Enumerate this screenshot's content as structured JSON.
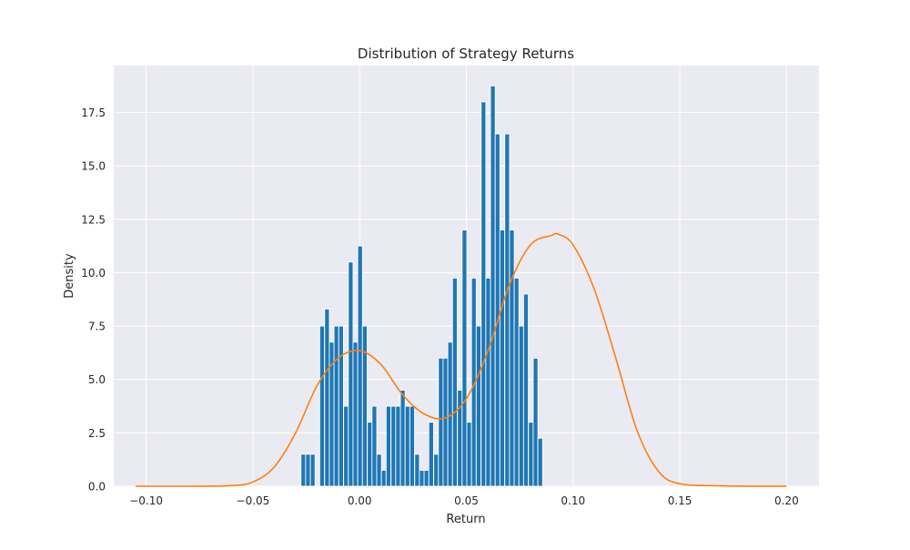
{
  "chart_data": {
    "type": "bar",
    "title": "Distribution of Strategy Returns",
    "xlabel": "Return",
    "ylabel": "Density",
    "xlim": [
      -0.1152,
      0.2152
    ],
    "ylim": [
      0,
      19.7
    ],
    "xticks": [
      -0.1,
      -0.05,
      0.0,
      0.05,
      0.1,
      0.15,
      0.2
    ],
    "xtick_labels": [
      "−0.10",
      "−0.05",
      "0.00",
      "0.05",
      "0.10",
      "0.15",
      "0.20"
    ],
    "yticks": [
      0,
      2.5,
      5,
      7.5,
      10,
      12.5,
      15,
      17.5
    ],
    "ytick_labels": [
      "0.0",
      "2.5",
      "5.0",
      "7.5",
      "10.0",
      "12.5",
      "15.0",
      "17.5"
    ],
    "grid": true,
    "background": "#eaeaf2",
    "histogram": {
      "color": "#1f77b4",
      "bin_width": 0.00222,
      "bins": [
        {
          "x0": -0.0275,
          "density": 1.5
        },
        {
          "x0": -0.0253,
          "density": 1.5
        },
        {
          "x0": -0.0231,
          "density": 1.5
        },
        {
          "x0": -0.0187,
          "density": 7.5
        },
        {
          "x0": -0.0164,
          "density": 8.3
        },
        {
          "x0": -0.0142,
          "density": 6.75
        },
        {
          "x0": -0.012,
          "density": 7.5
        },
        {
          "x0": -0.0098,
          "density": 7.5
        },
        {
          "x0": -0.0075,
          "density": 3.75
        },
        {
          "x0": -0.0053,
          "density": 10.5
        },
        {
          "x0": -0.0031,
          "density": 6.75
        },
        {
          "x0": -0.0009,
          "density": 11.25
        },
        {
          "x0": 0.0013,
          "density": 7.5
        },
        {
          "x0": 0.0036,
          "density": 3.0
        },
        {
          "x0": 0.0058,
          "density": 3.75
        },
        {
          "x0": 0.008,
          "density": 1.5
        },
        {
          "x0": 0.0102,
          "density": 0.75
        },
        {
          "x0": 0.0124,
          "density": 3.75
        },
        {
          "x0": 0.0147,
          "density": 3.75
        },
        {
          "x0": 0.0169,
          "density": 3.75
        },
        {
          "x0": 0.0191,
          "density": 4.5
        },
        {
          "x0": 0.0213,
          "density": 3.75
        },
        {
          "x0": 0.0235,
          "density": 3.75
        },
        {
          "x0": 0.0258,
          "density": 1.5
        },
        {
          "x0": 0.028,
          "density": 0.75
        },
        {
          "x0": 0.0302,
          "density": 0.75
        },
        {
          "x0": 0.0324,
          "density": 3.0
        },
        {
          "x0": 0.0347,
          "density": 1.5
        },
        {
          "x0": 0.0369,
          "density": 6.0
        },
        {
          "x0": 0.0391,
          "density": 6.0
        },
        {
          "x0": 0.0413,
          "density": 6.75
        },
        {
          "x0": 0.0435,
          "density": 9.75
        },
        {
          "x0": 0.0458,
          "density": 4.5
        },
        {
          "x0": 0.048,
          "density": 12.0
        },
        {
          "x0": 0.0502,
          "density": 3.0
        },
        {
          "x0": 0.0524,
          "density": 9.75
        },
        {
          "x0": 0.0546,
          "density": 7.5
        },
        {
          "x0": 0.0569,
          "density": 18.0
        },
        {
          "x0": 0.0591,
          "density": 9.75
        },
        {
          "x0": 0.0613,
          "density": 18.75
        },
        {
          "x0": 0.0635,
          "density": 16.5
        },
        {
          "x0": 0.0657,
          "density": 12.0
        },
        {
          "x0": 0.068,
          "density": 16.5
        },
        {
          "x0": 0.0702,
          "density": 12.0
        },
        {
          "x0": 0.0724,
          "density": 9.75
        },
        {
          "x0": 0.0746,
          "density": 7.5
        },
        {
          "x0": 0.0768,
          "density": 9.0
        },
        {
          "x0": 0.0791,
          "density": 3.0
        },
        {
          "x0": 0.0813,
          "density": 6.0
        },
        {
          "x0": 0.0835,
          "density": 2.25
        }
      ]
    },
    "kde": {
      "color": "#ff7f0e",
      "x": [
        -0.105,
        -0.08,
        -0.06,
        -0.05,
        -0.04,
        -0.03,
        -0.02,
        -0.01,
        0.0,
        0.01,
        0.02,
        0.03,
        0.04,
        0.05,
        0.06,
        0.07,
        0.08,
        0.09,
        0.093,
        0.1,
        0.11,
        0.12,
        0.13,
        0.14,
        0.15,
        0.17,
        0.2
      ],
      "y": [
        0.0,
        0.0,
        0.03,
        0.2,
        0.9,
        2.5,
        4.7,
        6.0,
        6.35,
        5.7,
        4.3,
        3.4,
        3.2,
        4.1,
        6.3,
        9.4,
        11.3,
        11.75,
        11.8,
        11.3,
        9.2,
        6.0,
        2.6,
        0.7,
        0.12,
        0.02,
        0.0
      ]
    }
  }
}
